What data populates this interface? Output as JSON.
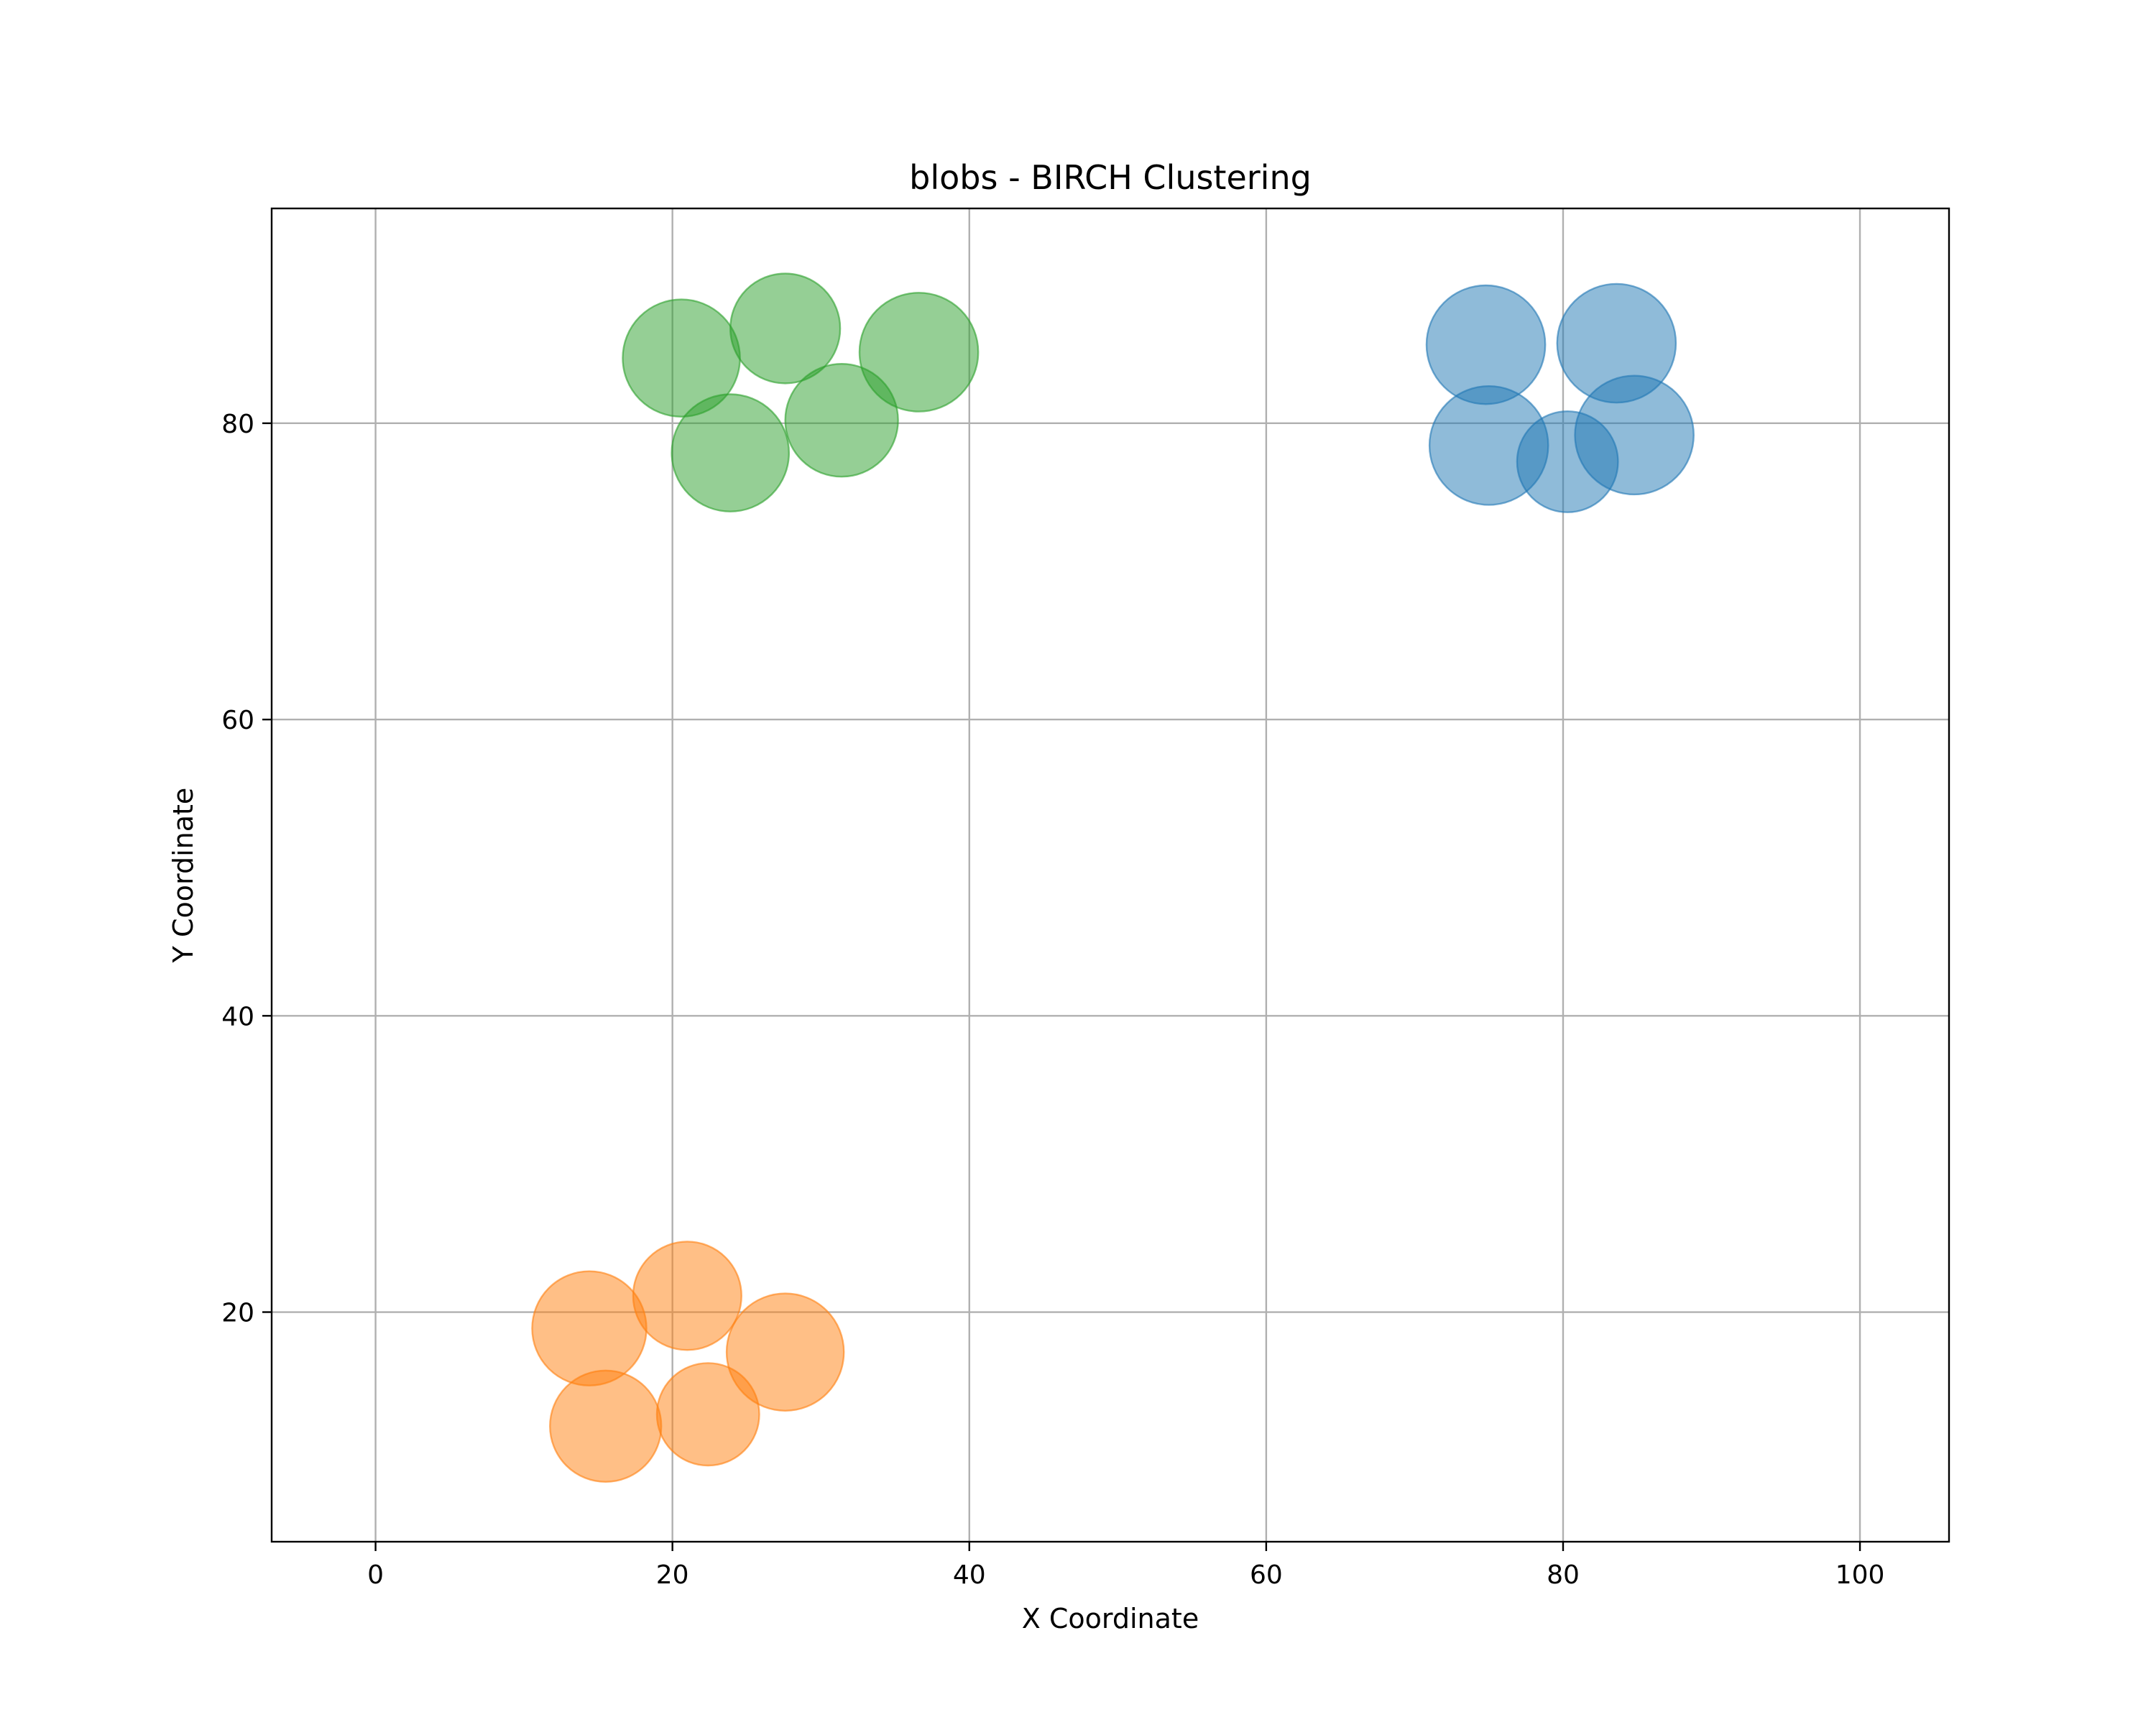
{
  "chart_data": {
    "type": "scatter",
    "title": "blobs - BIRCH Clustering",
    "xlabel": "X Coordinate",
    "ylabel": "Y Coordinate",
    "xlim": [
      -7,
      106
    ],
    "ylim": [
      4.5,
      94.5
    ],
    "grid": true,
    "x_ticks": [
      0,
      20,
      40,
      60,
      80,
      100
    ],
    "y_ticks": [
      20,
      40,
      60,
      80
    ],
    "x_tick_labels": [
      "0",
      "20",
      "40",
      "60",
      "80",
      "100"
    ],
    "y_tick_labels": [
      "20",
      "40",
      "60",
      "80"
    ],
    "marker_opacity": 0.5,
    "series": [
      {
        "color": "#1f77b4",
        "points": [
          {
            "x": 74.8,
            "y": 85.3,
            "r": 4.0
          },
          {
            "x": 83.6,
            "y": 85.4,
            "r": 4.0
          },
          {
            "x": 75.0,
            "y": 78.5,
            "r": 4.0
          },
          {
            "x": 80.3,
            "y": 77.4,
            "r": 3.4
          },
          {
            "x": 84.8,
            "y": 79.2,
            "r": 4.0
          }
        ]
      },
      {
        "color": "#ff7f0e",
        "points": [
          {
            "x": 14.4,
            "y": 18.9,
            "r": 3.85
          },
          {
            "x": 21.0,
            "y": 21.1,
            "r": 3.65
          },
          {
            "x": 27.6,
            "y": 17.3,
            "r": 3.95
          },
          {
            "x": 15.5,
            "y": 12.3,
            "r": 3.75
          },
          {
            "x": 22.4,
            "y": 13.1,
            "r": 3.45
          }
        ]
      },
      {
        "color": "#2ca02c",
        "points": [
          {
            "x": 20.6,
            "y": 84.4,
            "r": 3.95
          },
          {
            "x": 27.6,
            "y": 86.4,
            "r": 3.7
          },
          {
            "x": 36.6,
            "y": 84.8,
            "r": 4.0
          },
          {
            "x": 31.4,
            "y": 80.2,
            "r": 3.8
          },
          {
            "x": 23.9,
            "y": 78.0,
            "r": 3.95
          }
        ]
      }
    ]
  }
}
